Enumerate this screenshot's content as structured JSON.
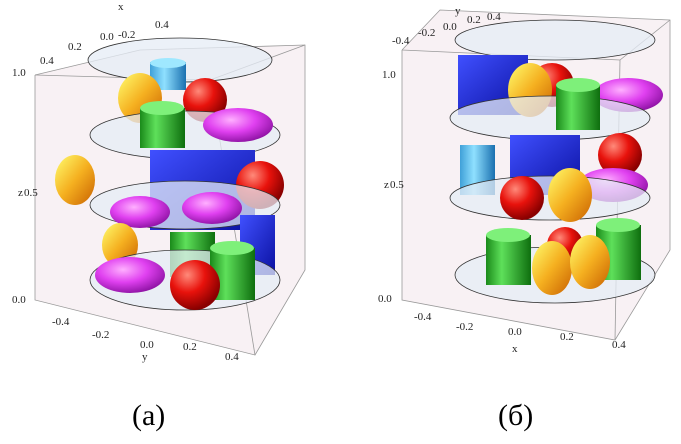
{
  "panels": [
    {
      "caption": "(a)",
      "axes": {
        "vertical": {
          "label": "z",
          "ticks": [
            "0.0",
            "0.5",
            "1.0"
          ]
        },
        "top": {
          "label": "x",
          "ticks": [
            "0.4",
            "0.2",
            "0.0",
            "-0.2",
            "0.4"
          ]
        },
        "bottom": {
          "label": "y",
          "ticks": [
            "-0.4",
            "-0.2",
            "0.0",
            "0.2",
            "0.4"
          ]
        }
      }
    },
    {
      "caption": "(б)",
      "axes": {
        "vertical": {
          "label": "z",
          "ticks": [
            "0.0",
            "0.5",
            "1.0"
          ]
        },
        "top": {
          "label": "y",
          "ticks": [
            "-0.4",
            "-0.2",
            "0.0",
            "0.2",
            "0.4"
          ]
        },
        "bottom": {
          "label": "x",
          "ticks": [
            "-0.4",
            "-0.2",
            "0.0",
            "0.2",
            "0.4"
          ]
        }
      }
    }
  ]
}
